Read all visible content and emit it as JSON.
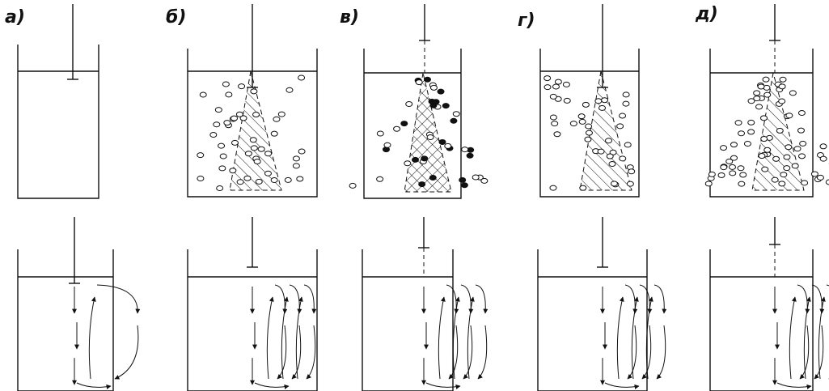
{
  "panels": [
    {
      "label": "а)"
    },
    {
      "label": "б)"
    },
    {
      "label": "в)"
    },
    {
      "label": "г)"
    },
    {
      "label": "д)"
    }
  ]
}
